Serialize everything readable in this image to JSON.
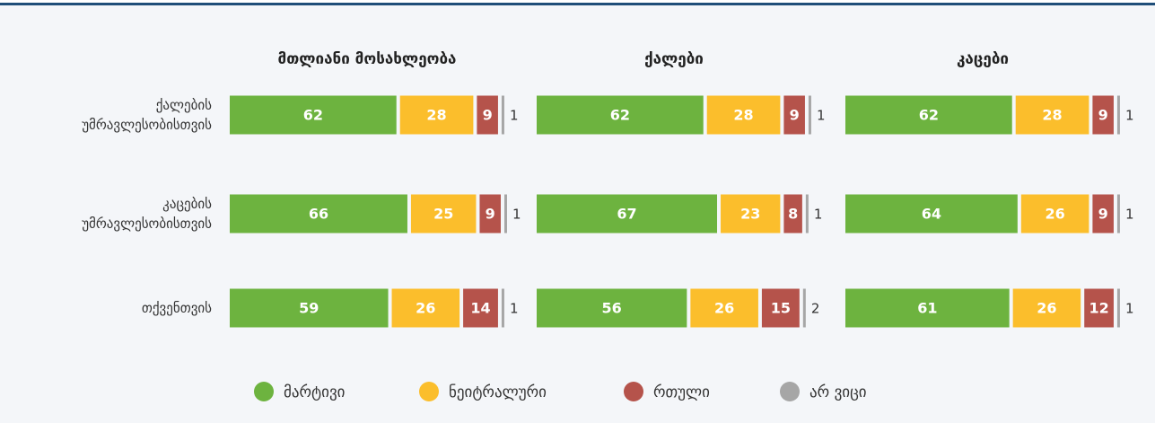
{
  "chart_data": {
    "type": "bar",
    "stacked": true,
    "categories": [
      "ქალების უმრავლესობისთვის",
      "კაცების უმრავლესობისთვის",
      "თქვენთვის"
    ],
    "series": [
      {
        "name": "მარტივი",
        "color": "#6db33f"
      },
      {
        "name": "ნეიტრალური",
        "color": "#fbbe2c"
      },
      {
        "name": "რთული",
        "color": "#b5534b"
      },
      {
        "name": "არ ვიცი",
        "color": "#a6a6a6"
      }
    ],
    "xlim": [
      0,
      100
    ],
    "panels": [
      {
        "title": "მთლიანი მოსახლეობა",
        "values": [
          [
            62,
            28,
            9,
            1
          ],
          [
            66,
            25,
            9,
            1
          ],
          [
            59,
            26,
            14,
            1
          ]
        ]
      },
      {
        "title": "ქალები",
        "values": [
          [
            62,
            28,
            9,
            1
          ],
          [
            67,
            23,
            8,
            1
          ],
          [
            56,
            26,
            15,
            2
          ]
        ]
      },
      {
        "title": "კაცები",
        "values": [
          [
            62,
            28,
            9,
            1
          ],
          [
            64,
            26,
            9,
            1
          ],
          [
            61,
            26,
            12,
            1
          ]
        ]
      }
    ]
  }
}
